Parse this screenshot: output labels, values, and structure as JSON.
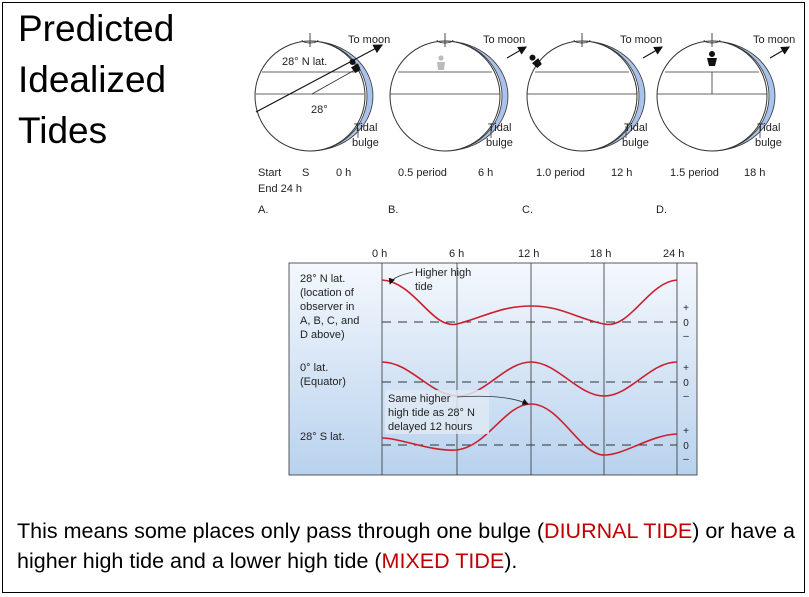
{
  "title": {
    "line1": "Predicted",
    "line2": "Idealized",
    "line3": "Tides"
  },
  "earth_panels": {
    "to_moon": "To moon",
    "tidal": "Tidal",
    "bulge": "bulge",
    "lat_label": "28° N lat.",
    "angle_label": "28°",
    "start": "Start",
    "s_marker": "S",
    "end": "End 24 h",
    "times": [
      "0 h",
      "6 h",
      "12 h",
      "18 h"
    ],
    "periods": [
      "0.5 period",
      "1.0 period",
      "1.5 period"
    ],
    "panel_letters": [
      "A.",
      "B.",
      "C.",
      "D."
    ]
  },
  "tide_graph": {
    "hour_ticks": [
      "0 h",
      "6 h",
      "12 h",
      "18 h",
      "24 h"
    ],
    "row1": {
      "line1": "28° N lat.",
      "line2": "(location of",
      "line3": "observer in",
      "line4": "A, B, C, and",
      "line5": "D above)"
    },
    "row2": {
      "line1": "0° lat.",
      "line2": "(Equator)"
    },
    "row3": {
      "line1": "28° S lat."
    },
    "higher_high": {
      "line1": "Higher high",
      "line2": "tide"
    },
    "same_higher": {
      "line1": "Same higher",
      "line2": "high tide as 28° N",
      "line3": "delayed 12 hours"
    },
    "scale": {
      "plus": "+",
      "zero": "0",
      "minus": "–"
    }
  },
  "caption": {
    "part1": "This means some places only pass through one bulge (",
    "diurnal": "DIURNAL TIDE",
    "part2": ") or have a higher high tide and a lower high tide (",
    "mixed": "MIXED TIDE",
    "part3": ")."
  },
  "colors": {
    "tide_curve": "#cc1f2e",
    "bulge_fill": "#a9c3ea",
    "caption_accent": "#c00000"
  }
}
